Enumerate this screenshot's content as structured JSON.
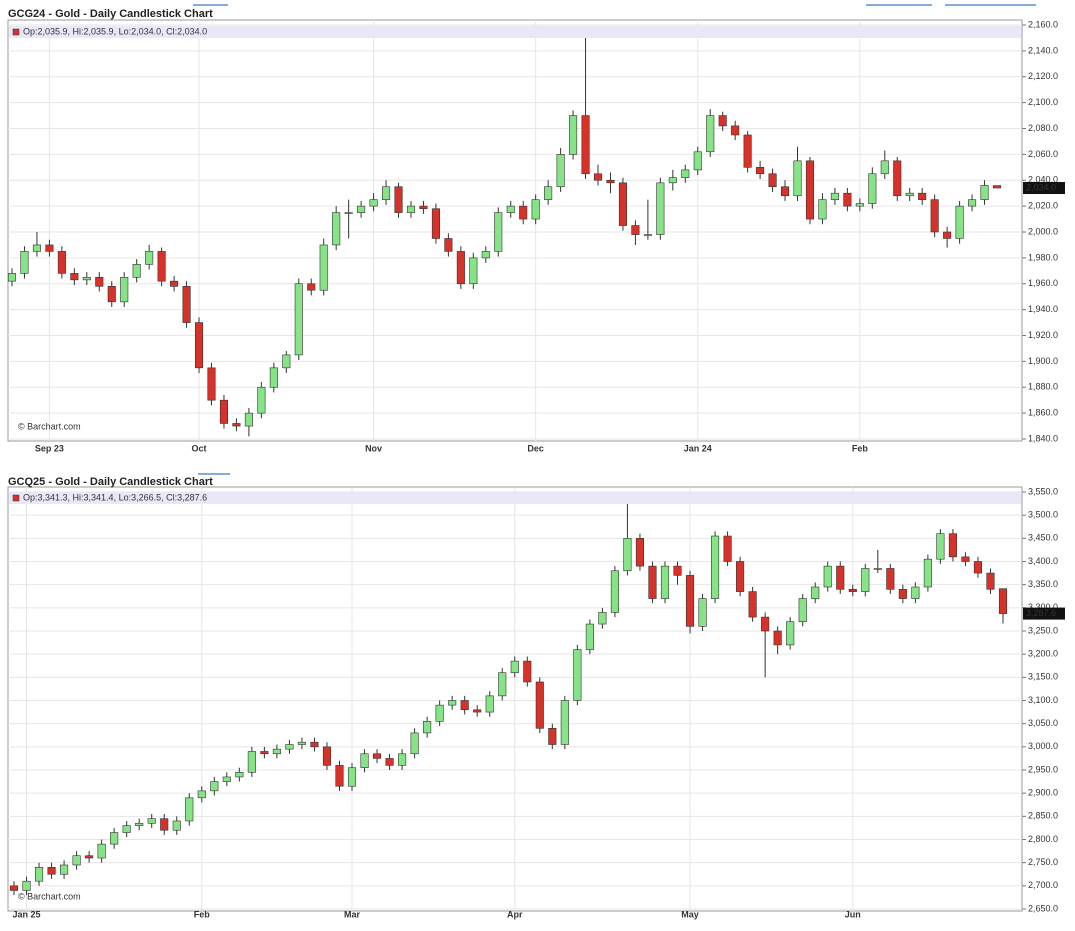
{
  "chart_data": [
    {
      "type": "candlestick",
      "title": "GCG24 - Gold - Daily Candlestick Chart",
      "info": "Op:2,035.9, Hi:2,035.9, Lo:2,034.0, Cl:2,034.0",
      "watermark": "© Barchart.com",
      "categories": [
        null,
        null,
        null,
        "Sep 23",
        null,
        null,
        null,
        null,
        null,
        null,
        null,
        null,
        null,
        null,
        null,
        "Oct",
        null,
        null,
        null,
        null,
        null,
        null,
        null,
        null,
        null,
        null,
        null,
        null,
        null,
        "Nov",
        null,
        null,
        null,
        null,
        null,
        null,
        null,
        null,
        null,
        null,
        null,
        null,
        "Dec",
        null,
        null,
        null,
        null,
        null,
        null,
        null,
        null,
        null,
        null,
        null,
        null,
        "Jan 24",
        null,
        null,
        null,
        null,
        null,
        null,
        null,
        null,
        null,
        null,
        null,
        null,
        "Feb",
        null,
        null,
        null,
        null,
        null,
        null,
        null,
        null,
        null,
        null,
        null
      ],
      "open": [
        1962,
        1968,
        1985,
        1990,
        1985,
        1968,
        1963,
        1965,
        1958,
        1946,
        1965,
        1975,
        1985,
        1962,
        1958,
        1930,
        1895,
        1870,
        1852,
        1850,
        1860,
        1880,
        1895,
        1905,
        1960,
        1955,
        1990,
        2015,
        2015,
        2020,
        2025,
        2035,
        2015,
        2020,
        2018,
        1995,
        1985,
        1960,
        1980,
        1985,
        2015,
        2020,
        2010,
        2025,
        2035,
        2060,
        2090,
        2045,
        2040,
        2038,
        2005,
        1998,
        1998,
        2038,
        2042,
        2048,
        2062,
        2090,
        2082,
        2075,
        2050,
        2045,
        2035,
        2028,
        2055,
        2010,
        2025,
        2030,
        2020,
        2022,
        2045,
        2055,
        2028,
        2030,
        2025,
        2000,
        1995,
        2020,
        2025,
        2035.9
      ],
      "high": [
        1972,
        1989,
        2000,
        1994,
        1989,
        1972,
        1969,
        1969,
        1962,
        1969,
        1979,
        1990,
        1988,
        1966,
        1962,
        1934,
        1899,
        1874,
        1856,
        1864,
        1884,
        1899,
        1908,
        1964,
        1964,
        1995,
        2020,
        2025,
        2024,
        2030,
        2040,
        2038,
        2024,
        2024,
        2022,
        1999,
        1989,
        1984,
        1989,
        2019,
        2024,
        2024,
        2029,
        2040,
        2065,
        2094,
        2150,
        2052,
        2046,
        2042,
        2009,
        2025,
        2042,
        2048,
        2052,
        2066,
        2095,
        2093,
        2086,
        2078,
        2055,
        2049,
        2040,
        2066,
        2058,
        2030,
        2034,
        2034,
        2026,
        2050,
        2063,
        2058,
        2034,
        2034,
        2029,
        2004,
        2024,
        2029,
        2040,
        2035.9
      ],
      "low": [
        1958,
        1964,
        1981,
        1981,
        1964,
        1959,
        1959,
        1954,
        1942,
        1942,
        1961,
        1971,
        1958,
        1954,
        1926,
        1891,
        1866,
        1848,
        1846,
        1842,
        1856,
        1876,
        1891,
        1901,
        1951,
        1951,
        1986,
        1995,
        2011,
        2016,
        2021,
        2011,
        2011,
        2014,
        1991,
        1981,
        1956,
        1956,
        1976,
        1981,
        2011,
        2006,
        2006,
        2021,
        2031,
        2056,
        2041,
        2036,
        2030,
        2001,
        1990,
        1994,
        1994,
        2032,
        2038,
        2044,
        2058,
        2078,
        2071,
        2046,
        2041,
        2031,
        2024,
        2024,
        2006,
        2006,
        2021,
        2016,
        2016,
        2018,
        2041,
        2024,
        2024,
        2021,
        1996,
        1988,
        1991,
        2016,
        2021,
        2034.0
      ],
      "close": [
        1968,
        1985,
        1990,
        1985,
        1968,
        1963,
        1965,
        1958,
        1946,
        1965,
        1975,
        1985,
        1962,
        1958,
        1930,
        1895,
        1870,
        1852,
        1850,
        1860,
        1880,
        1895,
        1905,
        1960,
        1955,
        1990,
        2015,
        2015,
        2020,
        2025,
        2035,
        2015,
        2020,
        2018,
        1995,
        1985,
        1960,
        1980,
        1985,
        2015,
        2020,
        2010,
        2025,
        2035,
        2060,
        2090,
        2045,
        2040,
        2038,
        2005,
        1998,
        1998,
        2038,
        2042,
        2048,
        2062,
        2090,
        2082,
        2075,
        2050,
        2045,
        2035,
        2028,
        2055,
        2010,
        2025,
        2030,
        2020,
        2022,
        2045,
        2055,
        2028,
        2030,
        2025,
        2000,
        1995,
        2020,
        2025,
        2036,
        2034.0
      ],
      "up_color": "#86e486",
      "down_color": "#d6322a",
      "grid": true,
      "ylim": [
        1840,
        2160
      ],
      "yticks": [
        {
          "value": 1840,
          "label": "1,840.0"
        },
        {
          "value": 1860,
          "label": "1,860.0"
        },
        {
          "value": 1880,
          "label": "1,880.0"
        },
        {
          "value": 1900,
          "label": "1,900.0"
        },
        {
          "value": 1920,
          "label": "1,920.0"
        },
        {
          "value": 1940,
          "label": "1,940.0"
        },
        {
          "value": 1960,
          "label": "1,960.0"
        },
        {
          "value": 1980,
          "label": "1,980.0"
        },
        {
          "value": 2000,
          "label": "2,000.0"
        },
        {
          "value": 2020,
          "label": "2,020.0"
        },
        {
          "value": 2040,
          "label": "2,040.0"
        },
        {
          "value": 2060,
          "label": "2,060.0"
        },
        {
          "value": 2080,
          "label": "2,080.0"
        },
        {
          "value": 2100,
          "label": "2,100.0"
        },
        {
          "value": 2120,
          "label": "2,120.0"
        },
        {
          "value": 2140,
          "label": "2,140.0"
        },
        {
          "value": 2160,
          "label": "2,160.0"
        }
      ],
      "last_price": {
        "value": 2034.0,
        "label": "2,034.0"
      }
    },
    {
      "type": "candlestick",
      "title": "GCQ25 - Gold - Daily Candlestick Chart",
      "info": "Op:3,341.3, Hi:3,341.4, Lo:3,266.5, Cl:3,287.6",
      "watermark": "© Barchart.com",
      "categories": [
        null,
        "Jan 25",
        null,
        null,
        null,
        null,
        null,
        null,
        null,
        null,
        null,
        null,
        null,
        null,
        null,
        "Feb",
        null,
        null,
        null,
        null,
        null,
        null,
        null,
        null,
        null,
        null,
        null,
        "Mar",
        null,
        null,
        null,
        null,
        null,
        null,
        null,
        null,
        null,
        null,
        null,
        null,
        "Apr",
        null,
        null,
        null,
        null,
        null,
        null,
        null,
        null,
        null,
        null,
        null,
        null,
        null,
        "May",
        null,
        null,
        null,
        null,
        null,
        null,
        null,
        null,
        null,
        null,
        null,
        null,
        "Jun",
        null,
        null,
        null,
        null,
        null,
        null,
        null,
        null,
        null,
        null,
        null,
        null
      ],
      "open": [
        2700,
        2690,
        2710,
        2740,
        2725,
        2745,
        2765,
        2760,
        2790,
        2815,
        2830,
        2835,
        2845,
        2820,
        2840,
        2890,
        2905,
        2925,
        2935,
        2945,
        2990,
        2985,
        2995,
        3005,
        3010,
        3000,
        2960,
        2915,
        2955,
        2985,
        2975,
        2960,
        2985,
        3030,
        3055,
        3090,
        3100,
        3080,
        3075,
        3110,
        3160,
        3185,
        3140,
        3040,
        3005,
        3100,
        3210,
        3265,
        3290,
        3380,
        3450,
        3390,
        3320,
        3390,
        3370,
        3260,
        3320,
        3455,
        3400,
        3335,
        3280,
        3250,
        3220,
        3270,
        3320,
        3345,
        3390,
        3340,
        3335,
        3385,
        3385,
        3340,
        3320,
        3345,
        3405,
        3460,
        3410,
        3400,
        3375,
        3341.3
      ],
      "high": [
        2710,
        2720,
        2750,
        2750,
        2755,
        2775,
        2775,
        2800,
        2825,
        2840,
        2845,
        2855,
        2855,
        2850,
        2900,
        2915,
        2935,
        2945,
        2955,
        3000,
        3000,
        3005,
        3015,
        3020,
        3020,
        3010,
        2970,
        2965,
        2995,
        2995,
        2985,
        2995,
        3040,
        3065,
        3100,
        3110,
        3110,
        3090,
        3120,
        3170,
        3195,
        3195,
        3150,
        3050,
        3110,
        3220,
        3275,
        3300,
        3390,
        3535,
        3460,
        3400,
        3400,
        3400,
        3380,
        3330,
        3465,
        3465,
        3410,
        3345,
        3290,
        3260,
        3280,
        3330,
        3355,
        3400,
        3400,
        3350,
        3395,
        3425,
        3395,
        3350,
        3355,
        3415,
        3470,
        3470,
        3420,
        3410,
        3385,
        3341.4
      ],
      "low": [
        2680,
        2680,
        2700,
        2715,
        2715,
        2735,
        2750,
        2750,
        2780,
        2805,
        2820,
        2825,
        2810,
        2810,
        2830,
        2880,
        2895,
        2915,
        2925,
        2935,
        2975,
        2975,
        2985,
        2995,
        2990,
        2950,
        2905,
        2905,
        2945,
        2965,
        2950,
        2950,
        2975,
        3020,
        3045,
        3080,
        3070,
        3065,
        3065,
        3100,
        3150,
        3130,
        3030,
        2995,
        2995,
        3090,
        3200,
        3255,
        3280,
        3370,
        3380,
        3310,
        3310,
        3350,
        3245,
        3250,
        3310,
        3390,
        3325,
        3270,
        3150,
        3200,
        3210,
        3260,
        3310,
        3335,
        3330,
        3325,
        3325,
        3375,
        3330,
        3310,
        3310,
        3335,
        3395,
        3400,
        3390,
        3365,
        3330,
        3266.5
      ],
      "close": [
        2690,
        2710,
        2740,
        2725,
        2745,
        2765,
        2760,
        2790,
        2815,
        2830,
        2835,
        2845,
        2820,
        2840,
        2890,
        2905,
        2925,
        2935,
        2945,
        2990,
        2985,
        2995,
        3005,
        3010,
        3000,
        2960,
        2915,
        2955,
        2985,
        2975,
        2960,
        2985,
        3030,
        3055,
        3090,
        3100,
        3080,
        3075,
        3110,
        3160,
        3185,
        3140,
        3040,
        3005,
        3100,
        3210,
        3265,
        3290,
        3380,
        3450,
        3390,
        3320,
        3390,
        3370,
        3260,
        3320,
        3455,
        3400,
        3335,
        3280,
        3250,
        3220,
        3270,
        3320,
        3345,
        3390,
        3340,
        3335,
        3385,
        3385,
        3340,
        3320,
        3345,
        3405,
        3460,
        3410,
        3400,
        3375,
        3340,
        3287.6
      ],
      "up_color": "#86e486",
      "down_color": "#d6322a",
      "grid": true,
      "ylim": [
        2650,
        3550
      ],
      "yticks": [
        {
          "value": 2650,
          "label": "2,650.0"
        },
        {
          "value": 2700,
          "label": "2,700.0"
        },
        {
          "value": 2750,
          "label": "2,750.0"
        },
        {
          "value": 2800,
          "label": "2,800.0"
        },
        {
          "value": 2850,
          "label": "2,850.0"
        },
        {
          "value": 2900,
          "label": "2,900.0"
        },
        {
          "value": 2950,
          "label": "2,950.0"
        },
        {
          "value": 3000,
          "label": "3,000.0"
        },
        {
          "value": 3050,
          "label": "3,050.0"
        },
        {
          "value": 3100,
          "label": "3,100.0"
        },
        {
          "value": 3150,
          "label": "3,150.0"
        },
        {
          "value": 3200,
          "label": "3,200.0"
        },
        {
          "value": 3250,
          "label": "3,250.0"
        },
        {
          "value": 3300,
          "label": "3,300.0"
        },
        {
          "value": 3350,
          "label": "3,350.0"
        },
        {
          "value": 3400,
          "label": "3,400.0"
        },
        {
          "value": 3450,
          "label": "3,450.0"
        },
        {
          "value": 3500,
          "label": "3,500.0"
        },
        {
          "value": 3550,
          "label": "3,550.0"
        }
      ],
      "last_price": {
        "value": 3287.6,
        "label": "3,287.6"
      }
    }
  ]
}
